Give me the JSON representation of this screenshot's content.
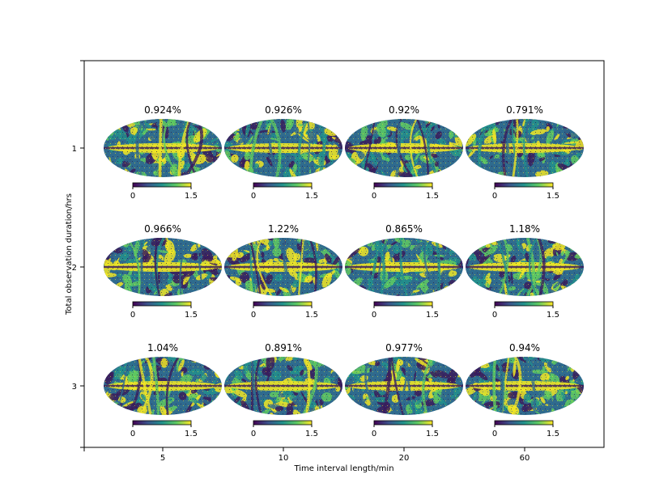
{
  "chart_data": {
    "type": "heatmap",
    "subtype": "mollweide-sky-map-grid",
    "xlabel": "Time interval length/min",
    "ylabel": "Total observation duration/hrs",
    "x_categories": [
      "5",
      "10",
      "20",
      "60"
    ],
    "y_categories": [
      "1",
      "2",
      "3"
    ],
    "colormap": "viridis",
    "colorbar": {
      "min": 0,
      "max": 1.5,
      "tick_labels": [
        "0",
        "1.5"
      ]
    },
    "panels": [
      {
        "row": "1",
        "col": "5",
        "value_label": "0.924%"
      },
      {
        "row": "1",
        "col": "10",
        "value_label": "0.926%"
      },
      {
        "row": "1",
        "col": "20",
        "value_label": "0.92%"
      },
      {
        "row": "1",
        "col": "60",
        "value_label": "0.791%"
      },
      {
        "row": "2",
        "col": "5",
        "value_label": "0.966%"
      },
      {
        "row": "2",
        "col": "10",
        "value_label": "1.22%"
      },
      {
        "row": "2",
        "col": "20",
        "value_label": "0.865%"
      },
      {
        "row": "2",
        "col": "60",
        "value_label": "1.18%"
      },
      {
        "row": "3",
        "col": "5",
        "value_label": "1.04%"
      },
      {
        "row": "3",
        "col": "10",
        "value_label": "0.891%"
      },
      {
        "row": "3",
        "col": "20",
        "value_label": "0.977%"
      },
      {
        "row": "3",
        "col": "60",
        "value_label": "0.94%"
      }
    ],
    "colors": {
      "dark": "#3b1c5c",
      "blue": "#2f6b8e",
      "teal": "#22908c",
      "green": "#5ec962",
      "yellow": "#f0e525"
    }
  }
}
